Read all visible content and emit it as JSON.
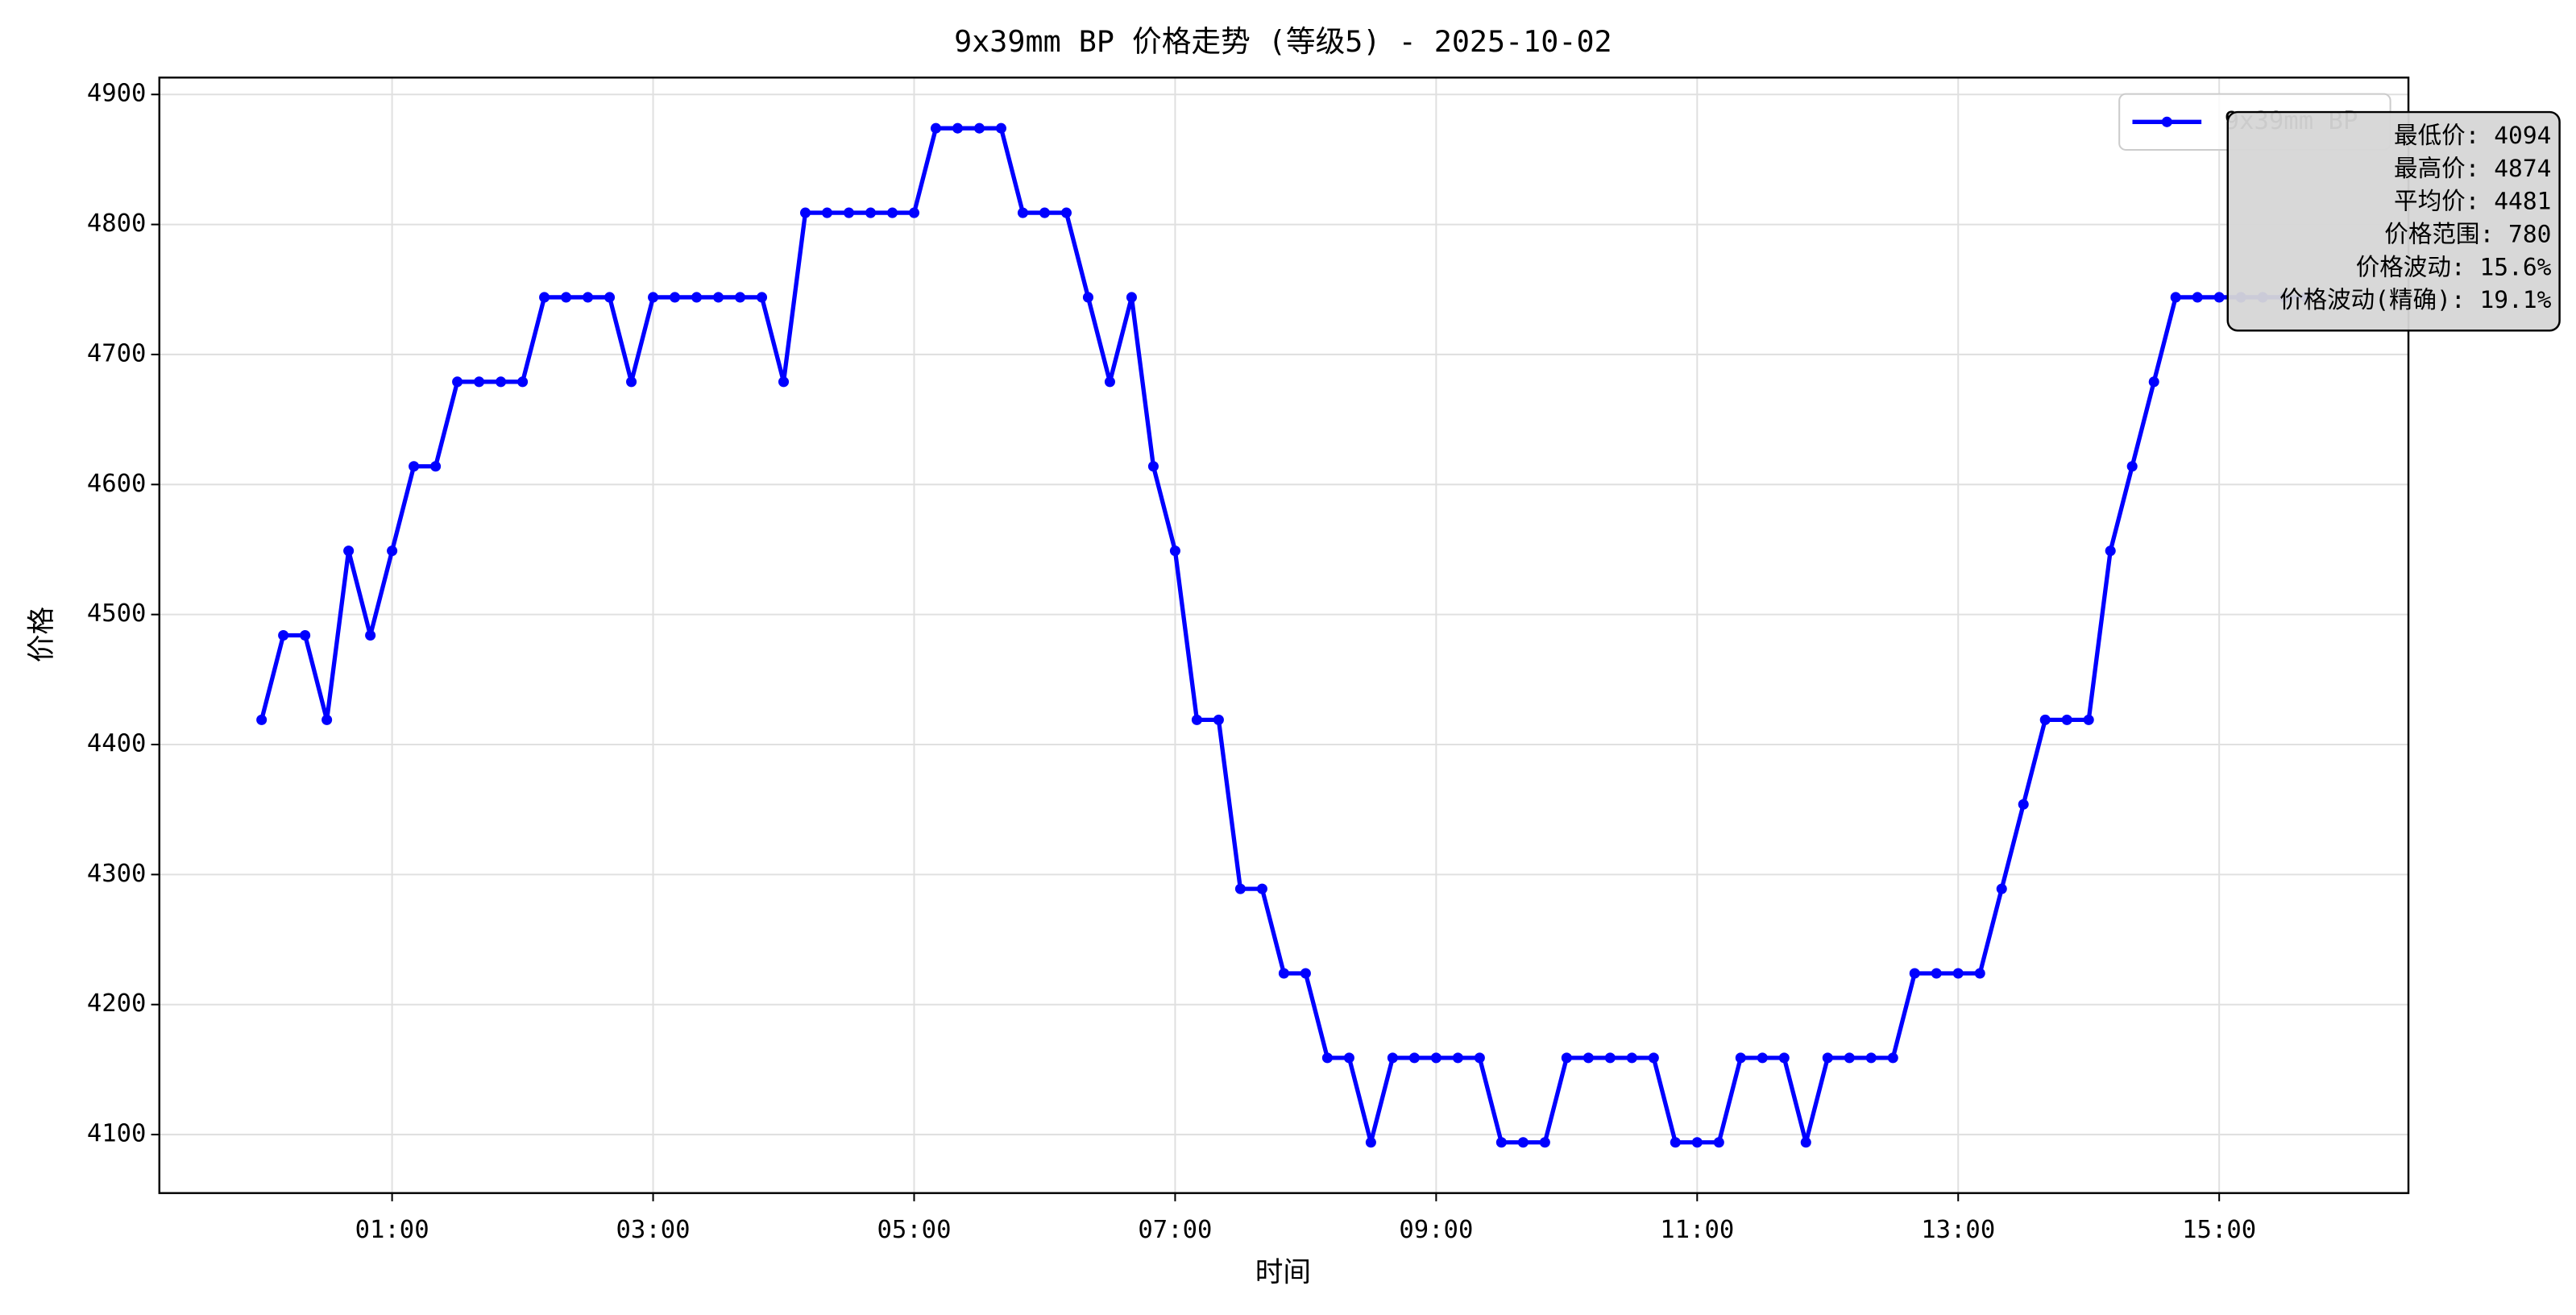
{
  "chart_data": {
    "type": "line",
    "title": "9x39mm BP 价格走势 (等级5) - 2025-10-02",
    "xlabel": "时间",
    "ylabel": "价格",
    "x": [
      0,
      10,
      20,
      30,
      40,
      50,
      60,
      70,
      80,
      90,
      100,
      110,
      120,
      130,
      140,
      150,
      160,
      170,
      180,
      190,
      200,
      210,
      220,
      230,
      240,
      250,
      260,
      270,
      280,
      290,
      300,
      310,
      320,
      330,
      340,
      350,
      360,
      370,
      380,
      390,
      400,
      410,
      420,
      430,
      440,
      450,
      460,
      470,
      480,
      490,
      500,
      510,
      520,
      530,
      540,
      550,
      560,
      570,
      580,
      590,
      600,
      610,
      620,
      630,
      640,
      650,
      660,
      670,
      680,
      690,
      700,
      710,
      720,
      730,
      740,
      750,
      760,
      770,
      780,
      790,
      800,
      810,
      820,
      830,
      840,
      850,
      860,
      870,
      880,
      890,
      900,
      910,
      920,
      930,
      940
    ],
    "series": [
      {
        "name": "9x39mm BP",
        "color": "#0000ff",
        "values": [
          4419,
          4484,
          4484,
          4419,
          4549,
          4484,
          4549,
          4614,
          4614,
          4679,
          4679,
          4679,
          4679,
          4744,
          4744,
          4744,
          4744,
          4679,
          4744,
          4744,
          4744,
          4744,
          4744,
          4744,
          4679,
          4809,
          4809,
          4809,
          4809,
          4809,
          4809,
          4874,
          4874,
          4874,
          4874,
          4809,
          4809,
          4809,
          4744,
          4679,
          4744,
          4614,
          4549,
          4419,
          4419,
          4289,
          4289,
          4224,
          4224,
          4159,
          4159,
          4094,
          4159,
          4159,
          4159,
          4159,
          4159,
          4094,
          4094,
          4094,
          4159,
          4159,
          4159,
          4159,
          4159,
          4094,
          4094,
          4094,
          4159,
          4159,
          4159,
          4094,
          4159,
          4159,
          4159,
          4159,
          4224,
          4224,
          4224,
          4224,
          4289,
          4354,
          4419,
          4419,
          4419,
          4549,
          4614,
          4679,
          4744,
          4744,
          4744,
          4744,
          4744,
          4744,
          4744
        ]
      }
    ],
    "xlim": [
      -47,
      987
    ],
    "xticks": [
      {
        "value": 60,
        "label": "01:00"
      },
      {
        "value": 180,
        "label": "03:00"
      },
      {
        "value": 300,
        "label": "05:00"
      },
      {
        "value": 420,
        "label": "07:00"
      },
      {
        "value": 540,
        "label": "09:00"
      },
      {
        "value": 660,
        "label": "11:00"
      },
      {
        "value": 780,
        "label": "13:00"
      },
      {
        "value": 900,
        "label": "15:00"
      }
    ],
    "ylim": [
      4055,
      4913
    ],
    "yticks": [
      4100,
      4200,
      4300,
      4400,
      4500,
      4600,
      4700,
      4800,
      4900
    ],
    "grid": true,
    "legend": "upper right",
    "annotation": [
      "最低价: 4094",
      "最高价: 4874",
      "平均价: 4481",
      "价格范围: 780",
      "价格波动: 15.6%",
      "价格波动(精确): 19.1%"
    ]
  }
}
